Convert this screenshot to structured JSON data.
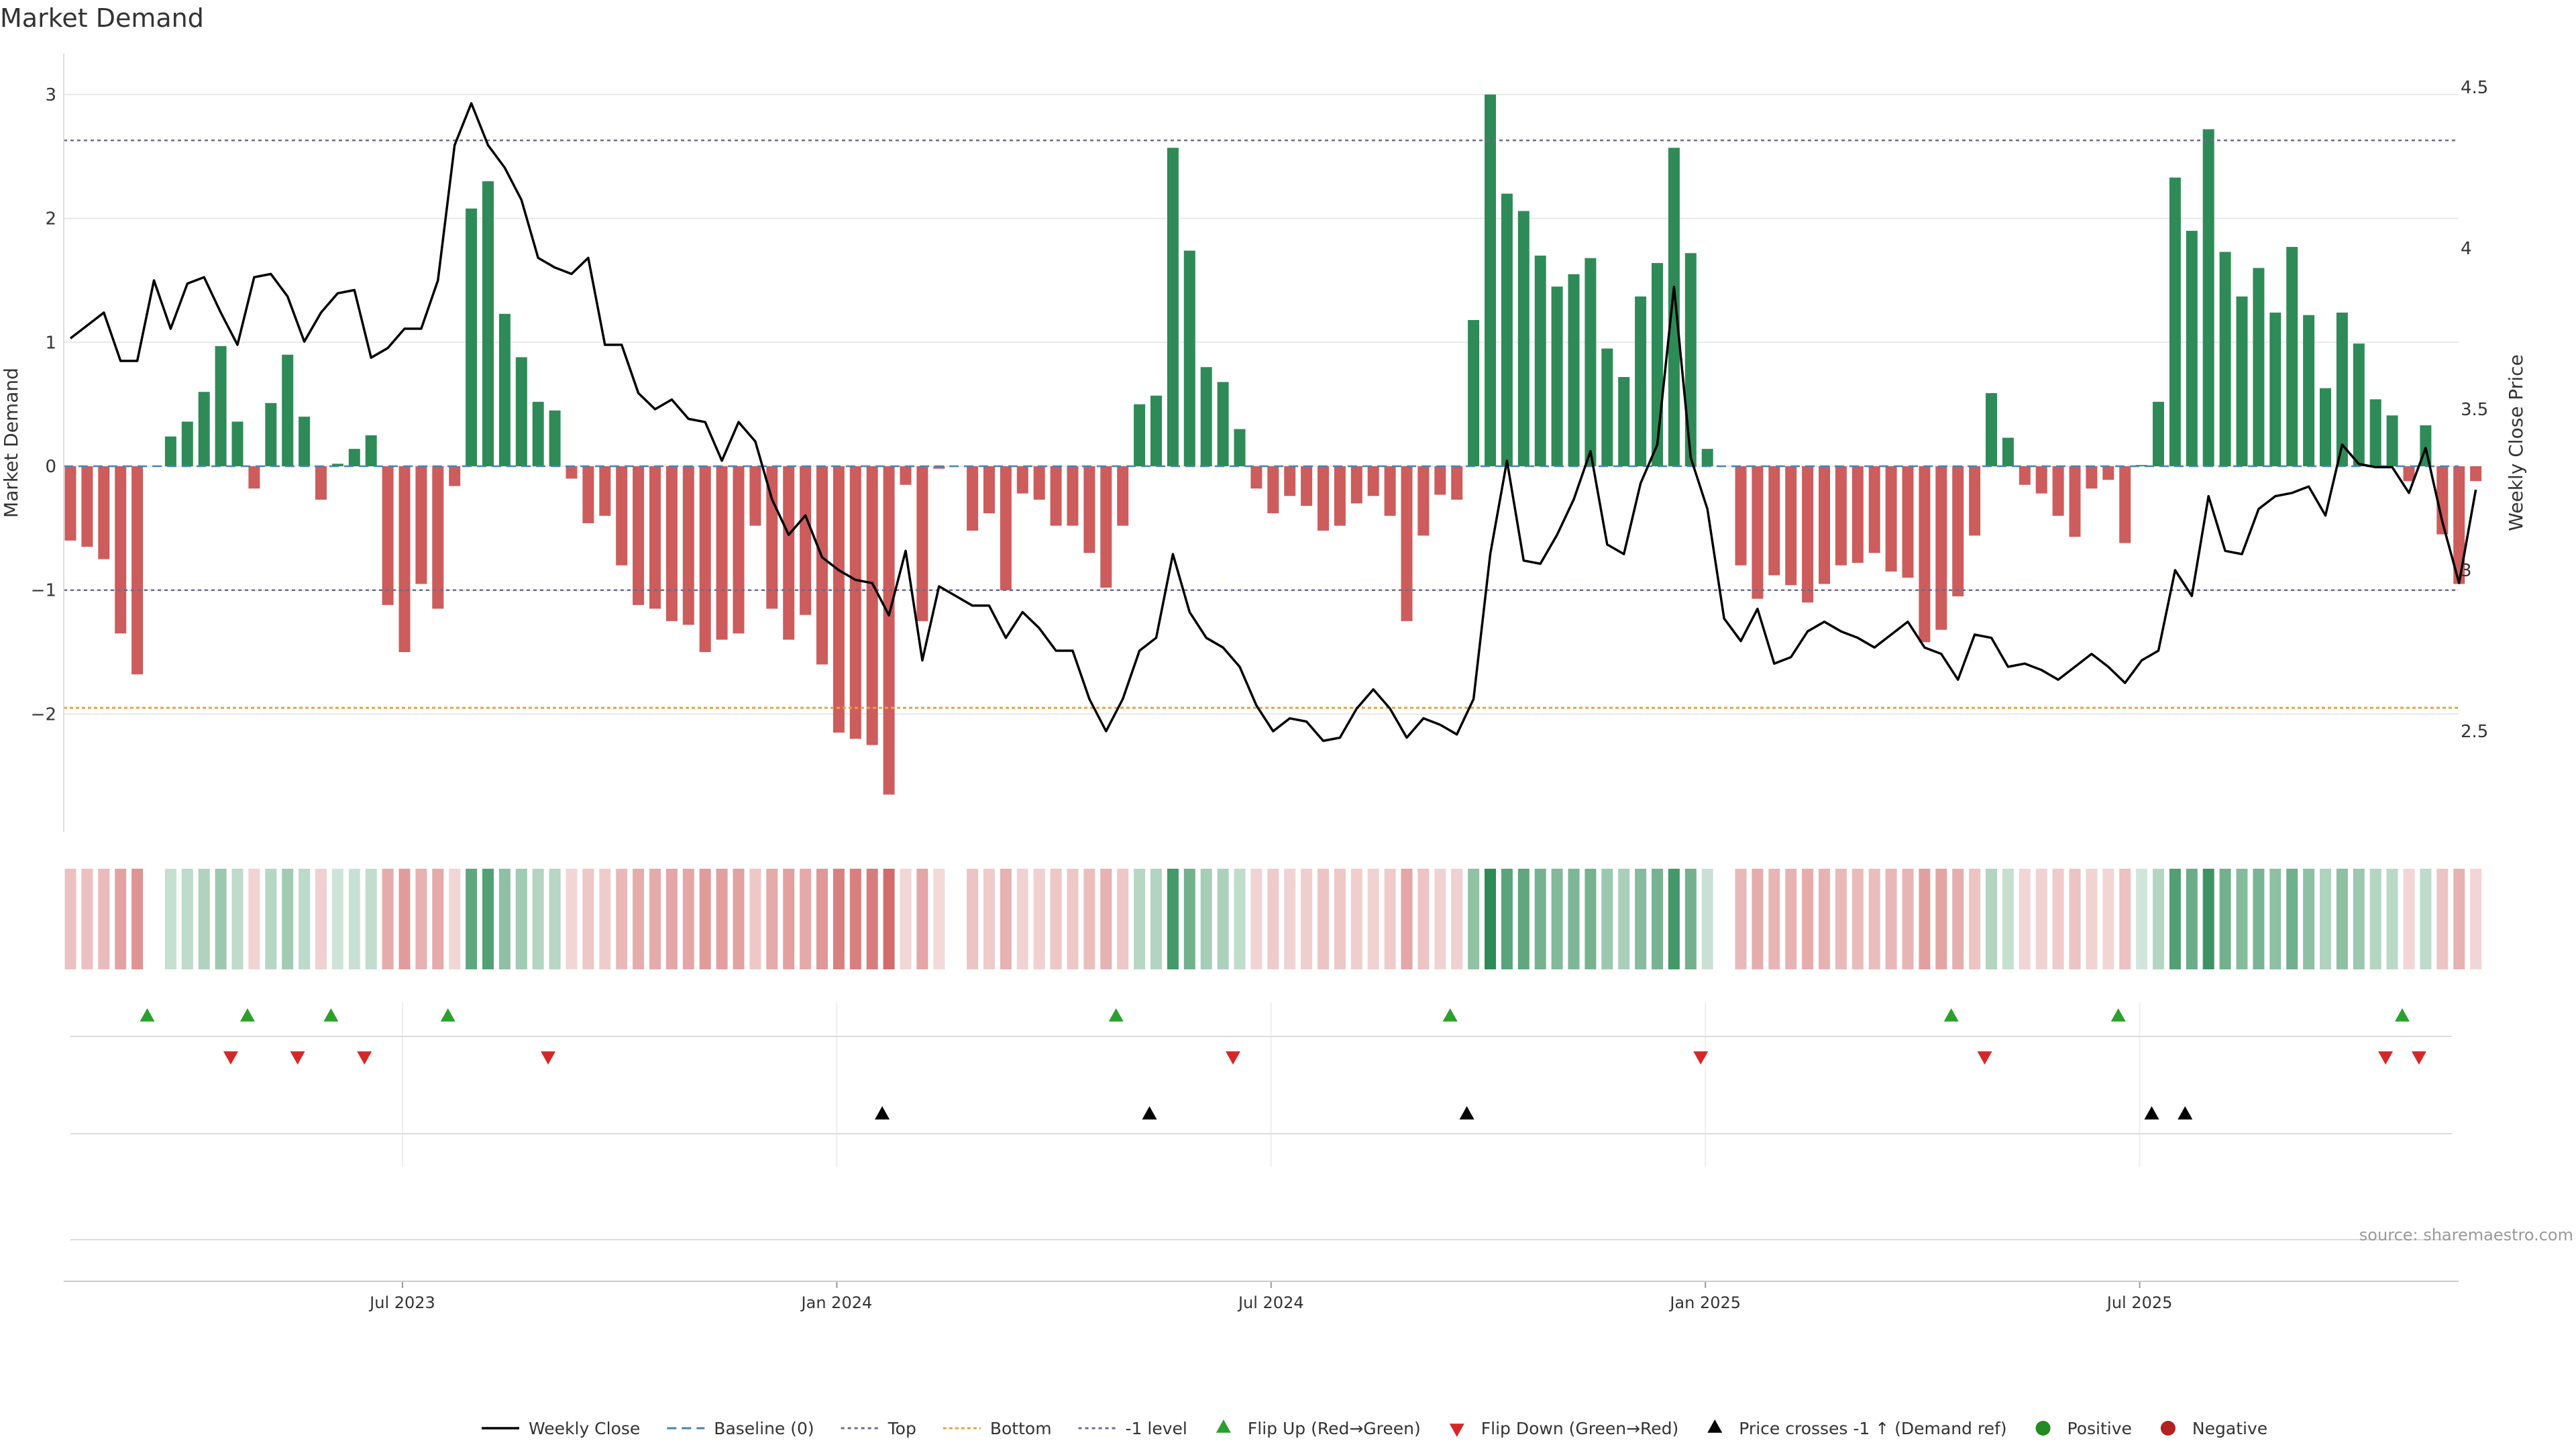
{
  "chart_data": {
    "type": "bar",
    "title": "Market Demand",
    "ylabel": "Market Demand",
    "y2label": "Weekly Close Price",
    "ylim": [
      -2.95,
      3.3
    ],
    "y2lim": [
      2.2,
      4.55
    ],
    "yticks": [
      3,
      2,
      1,
      0,
      -1,
      -2
    ],
    "ytick_labels": [
      "3",
      "2",
      "1",
      "0",
      "−1",
      "−2"
    ],
    "y2ticks": [
      4.5,
      4,
      3.5,
      3,
      2.5
    ],
    "y2tick_labels": [
      "4.5",
      "4",
      "3.5",
      "3",
      "2.5"
    ],
    "x_dates": [
      "Jul 2023",
      "Jan 2024",
      "Jul 2024",
      "Jan 2025",
      "Jul 2025"
    ],
    "x_date_week_index": [
      20,
      46,
      72,
      98,
      124
    ],
    "reference_lines": {
      "top": 2.63,
      "bottom": -1.95,
      "minus_one": -1.0,
      "baseline": 0
    },
    "demand": [
      -0.6,
      -0.65,
      -0.75,
      -1.35,
      -1.68,
      0.0,
      0.24,
      0.36,
      0.6,
      0.97,
      0.36,
      -0.18,
      0.51,
      0.9,
      0.4,
      -0.27,
      0.02,
      0.14,
      0.25,
      -1.12,
      -1.5,
      -0.95,
      -1.15,
      -0.16,
      2.08,
      2.3,
      1.23,
      0.88,
      0.52,
      0.45,
      -0.1,
      -0.46,
      -0.4,
      -0.8,
      -1.12,
      -1.15,
      -1.25,
      -1.28,
      -1.5,
      -1.4,
      -1.35,
      -0.48,
      -1.15,
      -1.4,
      -1.2,
      -1.6,
      -2.15,
      -2.2,
      -2.25,
      -2.65,
      -0.15,
      -1.25,
      -0.02,
      0.0,
      -0.52,
      -0.38,
      -1.0,
      -0.22,
      -0.27,
      -0.48,
      -0.48,
      -0.7,
      -0.98,
      -0.48,
      0.5,
      0.57,
      2.57,
      1.74,
      0.8,
      0.68,
      0.3,
      -0.18,
      -0.38,
      -0.24,
      -0.32,
      -0.52,
      -0.48,
      -0.3,
      -0.24,
      -0.4,
      -1.25,
      -0.56,
      -0.23,
      -0.27,
      1.18,
      3.0,
      2.2,
      2.06,
      1.7,
      1.45,
      1.55,
      1.68,
      0.95,
      0.72,
      1.37,
      1.64,
      2.57,
      1.72,
      0.14,
      0.0,
      -0.8,
      -1.07,
      -0.88,
      -0.96,
      -1.1,
      -0.95,
      -0.8,
      -0.78,
      -0.7,
      -0.85,
      -0.9,
      -1.42,
      -1.32,
      -1.05,
      -0.56,
      0.59,
      0.23,
      -0.15,
      -0.22,
      -0.4,
      -0.57,
      -0.18,
      -0.11,
      -0.62,
      0.01,
      0.52,
      2.33,
      1.9,
      2.72,
      1.73,
      1.37,
      1.6,
      1.24,
      1.77,
      1.22,
      0.63,
      1.24,
      0.99,
      0.54,
      0.41,
      -0.12,
      0.33,
      -0.55,
      -0.95,
      -0.12
    ],
    "price": [
      3.72,
      3.76,
      3.8,
      3.65,
      3.65,
      3.9,
      3.75,
      3.89,
      3.91,
      3.8,
      3.7,
      3.91,
      3.92,
      3.85,
      3.71,
      3.8,
      3.86,
      3.87,
      3.66,
      3.69,
      3.75,
      3.75,
      3.9,
      4.32,
      4.45,
      4.32,
      4.25,
      4.15,
      3.97,
      3.94,
      3.92,
      3.97,
      3.7,
      3.7,
      3.55,
      3.5,
      3.53,
      3.47,
      3.46,
      3.34,
      3.46,
      3.4,
      3.22,
      3.11,
      3.17,
      3.04,
      3.0,
      2.97,
      2.96,
      2.86,
      3.06,
      2.72,
      2.95,
      2.92,
      2.89,
      2.89,
      2.79,
      2.87,
      2.82,
      2.75,
      2.75,
      2.6,
      2.5,
      2.6,
      2.75,
      2.79,
      3.05,
      2.87,
      2.79,
      2.76,
      2.7,
      2.58,
      2.5,
      2.54,
      2.53,
      2.47,
      2.48,
      2.57,
      2.63,
      2.57,
      2.48,
      2.54,
      2.52,
      2.49,
      2.6,
      3.05,
      3.34,
      3.03,
      3.02,
      3.11,
      3.22,
      3.37,
      3.08,
      3.05,
      3.27,
      3.39,
      3.88,
      3.35,
      3.19,
      2.85,
      2.78,
      2.88,
      2.71,
      2.73,
      2.81,
      2.84,
      2.81,
      2.79,
      2.76,
      2.8,
      2.84,
      2.76,
      2.74,
      2.66,
      2.8,
      2.79,
      2.7,
      2.71,
      2.69,
      2.66,
      2.7,
      2.74,
      2.7,
      2.65,
      2.72,
      2.75,
      3.0,
      2.92,
      3.23,
      3.06,
      3.05,
      3.19,
      3.23,
      3.24,
      3.26,
      3.17,
      3.39,
      3.33,
      3.32,
      3.32,
      3.24,
      3.38,
      3.15,
      2.96,
      3.25
    ],
    "flip_up_weeks": [
      5,
      11,
      16,
      23,
      63,
      83,
      113,
      123,
      140
    ],
    "flip_down_weeks": [
      10,
      14,
      18,
      29,
      70,
      98,
      115,
      139,
      141
    ],
    "price_cross_weeks": [
      49,
      65,
      84,
      125,
      127
    ],
    "legend": [
      "Weekly Close",
      "Baseline (0)",
      "Top",
      "Bottom",
      "-1 level",
      "Flip Up (Red→Green)",
      "Flip Down (Green→Red)",
      "Price crosses -1 ↑ (Demand ref)",
      "Positive",
      "Negative"
    ],
    "source": "source: sharemaestro.com",
    "colors": {
      "positive": "#2e8b57",
      "negative": "#cd5c5c",
      "price": "#000000",
      "baseline": "#4682b4",
      "top": "#6b6b8c",
      "bottom": "#e8a33a",
      "minus_one": "#6b6b8c",
      "flip_up": "#2ca02c",
      "flip_down": "#d62728",
      "cross": "#000000",
      "legend_positive": "#228b22",
      "legend_negative": "#b22222",
      "grid": "#e8e8e8",
      "text": "#333333"
    }
  }
}
